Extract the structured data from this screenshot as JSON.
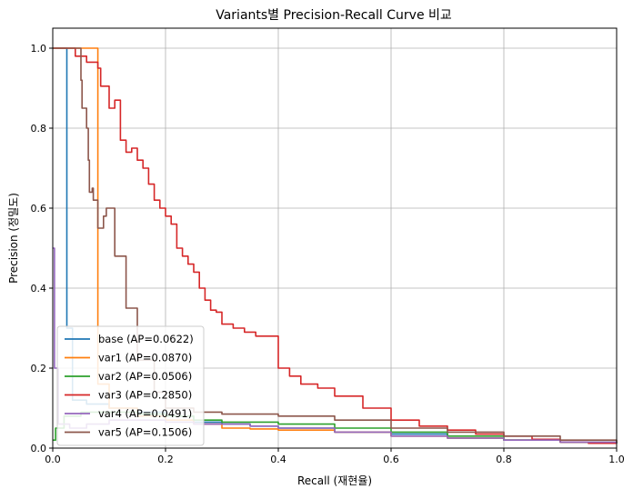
{
  "chart_data": {
    "type": "line",
    "title": "Variants별 Precision-Recall Curve 비교",
    "xlabel": "Recall (재현율)",
    "ylabel": "Precision (정밀도)",
    "xlim": [
      0,
      1
    ],
    "ylim": [
      0,
      1.05
    ],
    "xticks": [
      "0.0",
      "0.2",
      "0.4",
      "0.6",
      "0.8",
      "1.0"
    ],
    "yticks": [
      "0.0",
      "0.2",
      "0.4",
      "0.6",
      "0.8",
      "1.0"
    ],
    "grid": true,
    "legend_position": "lower-left",
    "series": [
      {
        "name": "base (AP=0.0622)",
        "color": "#1f77b4",
        "x": [
          0,
          0.0,
          0.025,
          0.035,
          0.06,
          0.1,
          0.15,
          0.2,
          0.25,
          0.3,
          0.35,
          0.4,
          0.5,
          0.6,
          0.7,
          0.8,
          0.9,
          1.0
        ],
        "y": [
          1.0,
          1.0,
          0.3,
          0.12,
          0.11,
          0.1,
          0.09,
          0.08,
          0.065,
          0.06,
          0.055,
          0.05,
          0.04,
          0.035,
          0.025,
          0.02,
          0.015,
          0.012
        ]
      },
      {
        "name": "var1 (AP=0.0870)",
        "color": "#ff7f0e",
        "x": [
          0,
          0.0,
          0.08,
          0.1,
          0.15,
          0.2,
          0.25,
          0.3,
          0.35,
          0.4,
          0.5,
          0.6,
          0.7,
          0.8,
          0.9,
          1.0
        ],
        "y": [
          1.0,
          1.0,
          0.16,
          0.1,
          0.08,
          0.07,
          0.06,
          0.05,
          0.048,
          0.045,
          0.04,
          0.03,
          0.025,
          0.02,
          0.015,
          0.012
        ]
      },
      {
        "name": "var2 (AP=0.0506)",
        "color": "#2ca02c",
        "x": [
          0.0,
          0.005,
          0.02,
          0.05,
          0.1,
          0.15,
          0.2,
          0.25,
          0.3,
          0.35,
          0.4,
          0.5,
          0.6,
          0.7,
          0.8,
          0.9,
          1.0
        ],
        "y": [
          0.02,
          0.05,
          0.08,
          0.09,
          0.09,
          0.085,
          0.08,
          0.07,
          0.065,
          0.065,
          0.06,
          0.05,
          0.04,
          0.03,
          0.02,
          0.015,
          0.012
        ]
      },
      {
        "name": "var3 (AP=0.2850)",
        "color": "#d62728",
        "x": [
          0,
          0.0,
          0.04,
          0.06,
          0.08,
          0.085,
          0.1,
          0.11,
          0.12,
          0.13,
          0.14,
          0.15,
          0.16,
          0.17,
          0.18,
          0.19,
          0.2,
          0.21,
          0.22,
          0.23,
          0.24,
          0.25,
          0.26,
          0.27,
          0.28,
          0.29,
          0.3,
          0.32,
          0.34,
          0.36,
          0.38,
          0.4,
          0.42,
          0.44,
          0.47,
          0.5,
          0.55,
          0.6,
          0.65,
          0.7,
          0.75,
          0.8,
          0.85,
          0.9,
          0.95,
          1.0
        ],
        "y": [
          1.0,
          1.0,
          0.98,
          0.965,
          0.95,
          0.905,
          0.85,
          0.87,
          0.77,
          0.74,
          0.75,
          0.72,
          0.7,
          0.66,
          0.62,
          0.6,
          0.58,
          0.56,
          0.5,
          0.48,
          0.46,
          0.44,
          0.4,
          0.37,
          0.345,
          0.34,
          0.31,
          0.3,
          0.29,
          0.28,
          0.28,
          0.2,
          0.18,
          0.16,
          0.15,
          0.13,
          0.1,
          0.07,
          0.055,
          0.045,
          0.035,
          0.03,
          0.022,
          0.015,
          0.012,
          0.012
        ]
      },
      {
        "name": "var4 (AP=0.0491)",
        "color": "#9467bd",
        "x": [
          0.0,
          0.003,
          0.01,
          0.03,
          0.06,
          0.1,
          0.15,
          0.2,
          0.25,
          0.3,
          0.35,
          0.4,
          0.5,
          0.6,
          0.7,
          0.8,
          0.9,
          1.0
        ],
        "y": [
          0.5,
          0.2,
          0.06,
          0.05,
          0.06,
          0.07,
          0.07,
          0.065,
          0.06,
          0.06,
          0.055,
          0.05,
          0.04,
          0.03,
          0.025,
          0.02,
          0.015,
          0.012
        ]
      },
      {
        "name": "var5 (AP=0.1506)",
        "color": "#8c564b",
        "x": [
          0,
          0.0,
          0.045,
          0.05,
          0.052,
          0.06,
          0.063,
          0.065,
          0.07,
          0.072,
          0.08,
          0.09,
          0.095,
          0.11,
          0.13,
          0.15,
          0.18,
          0.2,
          0.25,
          0.3,
          0.35,
          0.4,
          0.5,
          0.6,
          0.7,
          0.8,
          0.9,
          1.0
        ],
        "y": [
          1.0,
          1.0,
          1.0,
          0.92,
          0.85,
          0.8,
          0.72,
          0.64,
          0.65,
          0.62,
          0.55,
          0.58,
          0.6,
          0.48,
          0.35,
          0.22,
          0.14,
          0.1,
          0.09,
          0.085,
          0.085,
          0.08,
          0.07,
          0.05,
          0.04,
          0.03,
          0.02,
          0.015
        ]
      }
    ]
  }
}
